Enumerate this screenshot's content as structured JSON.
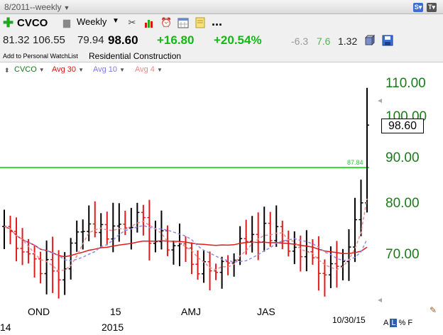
{
  "window": {
    "title": "8/2011--weekly"
  },
  "toolbar": {
    "symbol": "CVCO",
    "period": "Weekly",
    "icons": [
      "tools-icon",
      "bar-chart-icon",
      "alarm-clock-icon",
      "calendar-icon",
      "note-icon"
    ],
    "more": "..."
  },
  "quote": {
    "open": "81.32",
    "high": "106.55",
    "low": "79.94",
    "last": "98.60",
    "change": "+16.80",
    "change_pct": "+20.54%",
    "misc1": "-6.3",
    "misc2": "7.6",
    "misc3": "1.32"
  },
  "info": {
    "watchlist_link": "Add to Personal WatchList",
    "industry": "Residential Construction"
  },
  "legend": {
    "symbol": "CVCO",
    "ma1": "Avg 30",
    "ma2": "Avg 10",
    "ma3": "Avg 4"
  },
  "colors": {
    "up_bar": "#000000",
    "down_bar": "#e01b1b",
    "avg30": "#e01b1b",
    "avg10": "#8a8ae8",
    "avg4": "#f08a8a",
    "horizontal_line": "#33e033",
    "price_axis": "#1a7a1a"
  },
  "chart_data": {
    "type": "bar",
    "y_ticks": [
      "110.00",
      "100.00",
      "90.00",
      "80.00",
      "70.00"
    ],
    "x_labels": [
      "OND",
      "15",
      "AMJ",
      "JAS",
      "10/30/15"
    ],
    "year_labels": [
      "14",
      "2015"
    ],
    "horizontal_line": {
      "value": 87.84,
      "label": "87.84"
    },
    "last_price_label": "98.60",
    "ohlc_weeks": 61
  },
  "corner": {
    "a": "A",
    "l": "L",
    "pct": "%",
    "f": "F"
  }
}
